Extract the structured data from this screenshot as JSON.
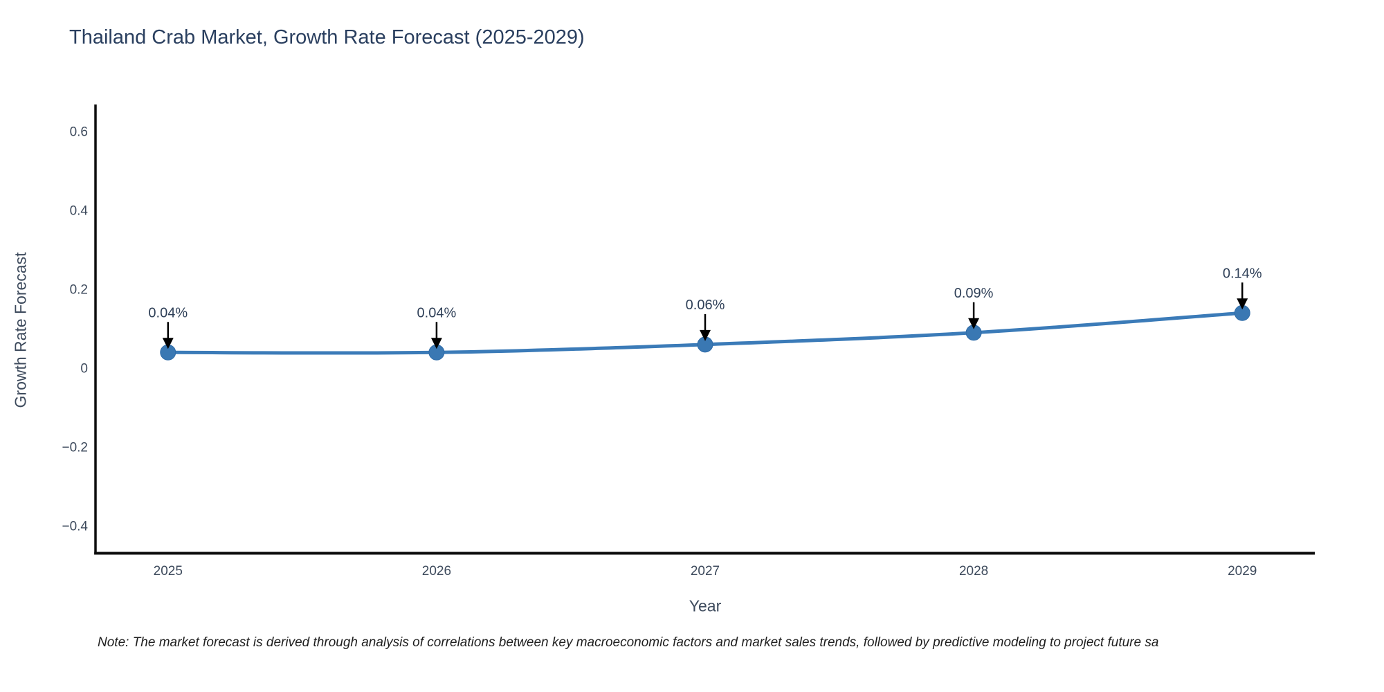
{
  "title": "Thailand Crab Market, Growth Rate Forecast (2025-2029)",
  "note": "Note: The market forecast is derived through analysis of correlations between key macroeconomic factors and market sales trends, followed by predictive modeling to project future sa",
  "chart_data": {
    "type": "line",
    "title": "Thailand Crab Market, Growth Rate Forecast (2025-2029)",
    "xlabel": "Year",
    "ylabel": "Growth Rate Forecast",
    "x": [
      2025,
      2026,
      2027,
      2028,
      2029
    ],
    "values": [
      0.04,
      0.04,
      0.06,
      0.09,
      0.14
    ],
    "point_labels": [
      "0.04%",
      "0.04%",
      "0.06%",
      "0.09%",
      "0.14%"
    ],
    "x_ticks": [
      2025,
      2026,
      2027,
      2028,
      2029
    ],
    "x_tick_labels": [
      "2025",
      "2026",
      "2027",
      "2028",
      "2029"
    ],
    "y_ticks": [
      -0.4,
      -0.2,
      0,
      0.2,
      0.4,
      0.6
    ],
    "y_tick_labels": [
      "−0.4",
      "−0.2",
      "0",
      "0.2",
      "0.4",
      "0.6"
    ],
    "xlim": [
      2024.73,
      2029.27
    ],
    "ylim": [
      -0.47,
      0.665
    ],
    "grid": false,
    "legend": "none",
    "line_color": "#3b7bb8",
    "marker_color": "#3a78b3",
    "marker_edge_color": "#2e6ba8",
    "axis_line_color": "#0d0d0d",
    "tick_label_color": "#3d4a5c",
    "annotation_text_color": "#2e3f57",
    "annotation_arrow_color": "#000000"
  }
}
